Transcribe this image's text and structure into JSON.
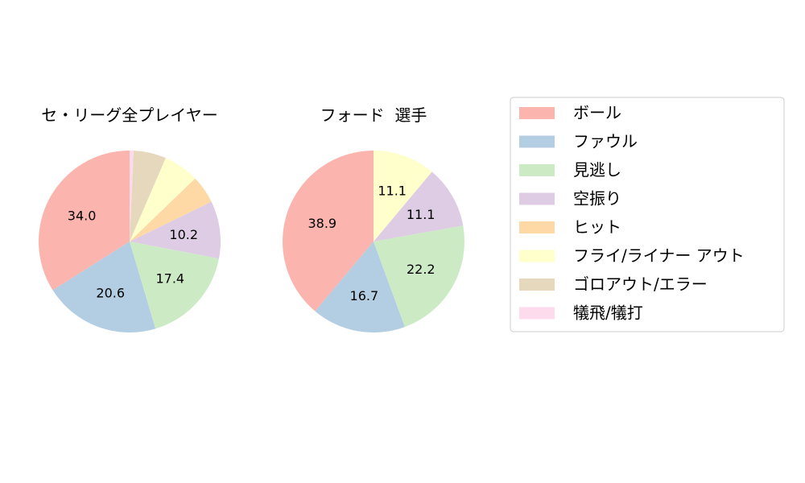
{
  "chart_data": [
    {
      "type": "pie",
      "title": "セ・リーグ全プレイヤー",
      "categories": [
        "ボール",
        "ファウル",
        "見逃し",
        "空振り",
        "ヒット",
        "フライ/ライナー アウト",
        "ゴロアウト/エラー",
        "犠飛/犠打"
      ],
      "values": [
        34.0,
        20.6,
        17.4,
        10.2,
        5.0,
        6.3,
        5.8,
        0.7
      ],
      "data_labels": [
        "34.0",
        "20.6",
        "17.4",
        "10.2",
        "",
        "",
        "",
        ""
      ]
    },
    {
      "type": "pie",
      "title": "フォード  選手",
      "categories": [
        "ボール",
        "ファウル",
        "見逃し",
        "空振り",
        "ヒット",
        "フライ/ライナー アウト",
        "ゴロアウト/エラー",
        "犠飛/犠打"
      ],
      "values": [
        38.9,
        16.7,
        22.2,
        11.1,
        0,
        11.1,
        0,
        0
      ],
      "data_labels": [
        "38.9",
        "16.7",
        "22.2",
        "11.1",
        "",
        "11.1",
        "",
        ""
      ]
    }
  ],
  "legend": {
    "placement": "right",
    "items": [
      "ボール",
      "ファウル",
      "見逃し",
      "空振り",
      "ヒット",
      "フライ/ライナー アウト",
      "ゴロアウト/エラー",
      "犠飛/犠打"
    ]
  },
  "colors": [
    "#fbb4ae",
    "#b3cde3",
    "#ccebc5",
    "#decbe4",
    "#fed9a6",
    "#ffffcc",
    "#e5d8bd",
    "#fddaec"
  ]
}
